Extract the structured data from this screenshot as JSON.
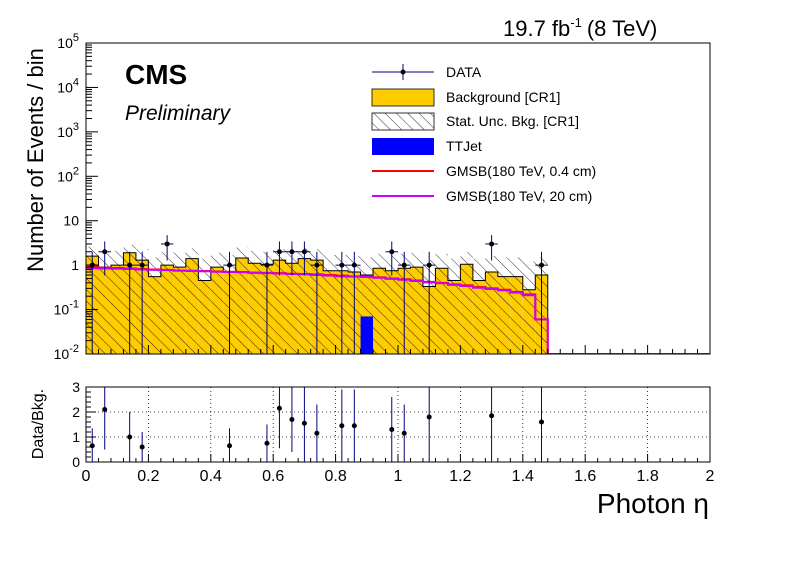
{
  "header": {
    "lumi_value": "19.7 fb",
    "lumi_exp": "-1",
    "lumi_energy": "(8 TeV)",
    "experiment": "CMS",
    "status": "Preliminary"
  },
  "legend": {
    "data": "DATA",
    "background": "Background [CR1]",
    "stat_unc": "Stat. Unc. Bkg. [CR1]",
    "ttjet": "TTJet",
    "gmsb_1": "GMSB(180 TeV, 0.4 cm)",
    "gmsb_2": "GMSB(180 TeV, 20 cm)"
  },
  "colors": {
    "background": "#ffcc00",
    "ttjet": "#0000ff",
    "gmsb_1": "#ff0000",
    "gmsb_2": "#cc00ff",
    "data": "#000000",
    "errorbar": "#000080"
  },
  "chart_data": [
    {
      "type": "bar",
      "panel": "main",
      "ylabel": "Number of Events / bin",
      "yscale": "log",
      "ylim": [
        0.01,
        100000
      ],
      "xlim": [
        0,
        2
      ],
      "ytick_labels": [
        "10-2",
        "10-1",
        "1",
        "10",
        "102",
        "103",
        "104",
        "105"
      ],
      "bin_width": 0.04,
      "x_bin_lows": [
        0.0,
        0.04,
        0.08,
        0.12,
        0.16,
        0.2,
        0.24,
        0.28,
        0.32,
        0.36,
        0.4,
        0.44,
        0.48,
        0.52,
        0.56,
        0.6,
        0.64,
        0.68,
        0.72,
        0.76,
        0.8,
        0.84,
        0.88,
        0.92,
        0.96,
        1.0,
        1.04,
        1.08,
        1.12,
        1.16,
        1.2,
        1.24,
        1.28,
        1.32,
        1.36,
        1.4,
        1.44
      ],
      "background": [
        1.6,
        0.9,
        1.0,
        1.9,
        1.3,
        0.55,
        1.0,
        0.9,
        1.4,
        0.45,
        0.9,
        0.7,
        1.45,
        1.1,
        1.05,
        1.3,
        1.1,
        1.4,
        1.3,
        0.75,
        0.75,
        0.7,
        0.6,
        0.85,
        0.75,
        0.85,
        0.9,
        0.33,
        0.85,
        0.45,
        1.05,
        0.45,
        0.7,
        0.55,
        0.55,
        0.28,
        0.6
      ],
      "stat_unc_upper": [
        2.6,
        2.0,
        2.1,
        2.9,
        2.3,
        1.5,
        2.0,
        1.9,
        2.4,
        1.4,
        1.9,
        1.7,
        2.5,
        2.1,
        2.0,
        2.3,
        2.1,
        2.4,
        2.3,
        1.7,
        1.7,
        1.6,
        1.5,
        1.8,
        1.7,
        1.8,
        1.9,
        1.3,
        1.8,
        1.4,
        2.0,
        1.4,
        1.6,
        1.5,
        1.5,
        1.2,
        1.5
      ],
      "ttjet": [
        {
          "x_low": 0.88,
          "x_high": 0.92,
          "value": 0.07
        }
      ],
      "series": [
        {
          "name": "DATA",
          "x": [
            0.02,
            0.06,
            0.14,
            0.18,
            0.26,
            0.46,
            0.58,
            0.62,
            0.66,
            0.7,
            0.74,
            0.82,
            0.86,
            0.98,
            1.02,
            1.1,
            1.3,
            1.46
          ],
          "values": [
            1.0,
            2.0,
            1.0,
            1.0,
            3.0,
            1.0,
            1.0,
            2.0,
            2.0,
            2.0,
            1.0,
            1.0,
            1.0,
            2.0,
            1.0,
            1.0,
            3.0,
            1.0
          ]
        },
        {
          "name": "GMSB(180 TeV, 0.4 cm)",
          "values": [
            0.9,
            0.88,
            0.86,
            0.84,
            0.82,
            0.8,
            0.78,
            0.76,
            0.75,
            0.74,
            0.72,
            0.71,
            0.7,
            0.68,
            0.67,
            0.66,
            0.64,
            0.63,
            0.62,
            0.6,
            0.58,
            0.56,
            0.55,
            0.53,
            0.5,
            0.48,
            0.45,
            0.42,
            0.4,
            0.37,
            0.35,
            0.32,
            0.3,
            0.28,
            0.25,
            0.22,
            0.06
          ]
        },
        {
          "name": "GMSB(180 TeV, 20 cm)",
          "values": [
            0.85,
            0.84,
            0.83,
            0.82,
            0.8,
            0.78,
            0.77,
            0.75,
            0.74,
            0.73,
            0.71,
            0.7,
            0.69,
            0.67,
            0.66,
            0.65,
            0.63,
            0.62,
            0.6,
            0.58,
            0.56,
            0.55,
            0.54,
            0.52,
            0.49,
            0.47,
            0.44,
            0.41,
            0.39,
            0.36,
            0.34,
            0.31,
            0.29,
            0.27,
            0.24,
            0.21,
            0.06
          ]
        }
      ]
    },
    {
      "type": "scatter",
      "panel": "ratio",
      "ylabel": "Data/Bkg.",
      "xlabel": "Photon η",
      "ylim": [
        0,
        3
      ],
      "xlim": [
        0,
        2
      ],
      "grid": true,
      "xtick_labels": [
        "0",
        "0.2",
        "0.4",
        "0.6",
        "0.8",
        "1",
        "1.2",
        "1.4",
        "1.6",
        "1.8",
        "2"
      ],
      "ytick_labels": [
        "0",
        "1",
        "2",
        "3"
      ],
      "points": [
        {
          "x": 0.02,
          "y": 0.65,
          "err": 0.7
        },
        {
          "x": 0.06,
          "y": 2.1,
          "err": 1.6
        },
        {
          "x": 0.14,
          "y": 1.0,
          "err": 1.0
        },
        {
          "x": 0.18,
          "y": 0.6,
          "err": 0.6
        },
        {
          "x": 0.46,
          "y": 0.65,
          "err": 0.7
        },
        {
          "x": 0.58,
          "y": 0.75,
          "err": 0.75
        },
        {
          "x": 0.62,
          "y": 2.15,
          "err": 1.6
        },
        {
          "x": 0.66,
          "y": 1.7,
          "err": 1.3
        },
        {
          "x": 0.7,
          "y": 1.55,
          "err": 1.6
        },
        {
          "x": 0.74,
          "y": 1.15,
          "err": 1.15
        },
        {
          "x": 0.82,
          "y": 1.45,
          "err": 1.45
        },
        {
          "x": 0.86,
          "y": 1.45,
          "err": 1.45
        },
        {
          "x": 0.98,
          "y": 1.3,
          "err": 1.3
        },
        {
          "x": 1.02,
          "y": 1.15,
          "err": 1.15
        },
        {
          "x": 1.1,
          "y": 1.8,
          "err": 1.8
        },
        {
          "x": 1.3,
          "y": 1.85,
          "err": 1.85
        },
        {
          "x": 1.46,
          "y": 1.6,
          "err": 1.6
        }
      ]
    }
  ]
}
